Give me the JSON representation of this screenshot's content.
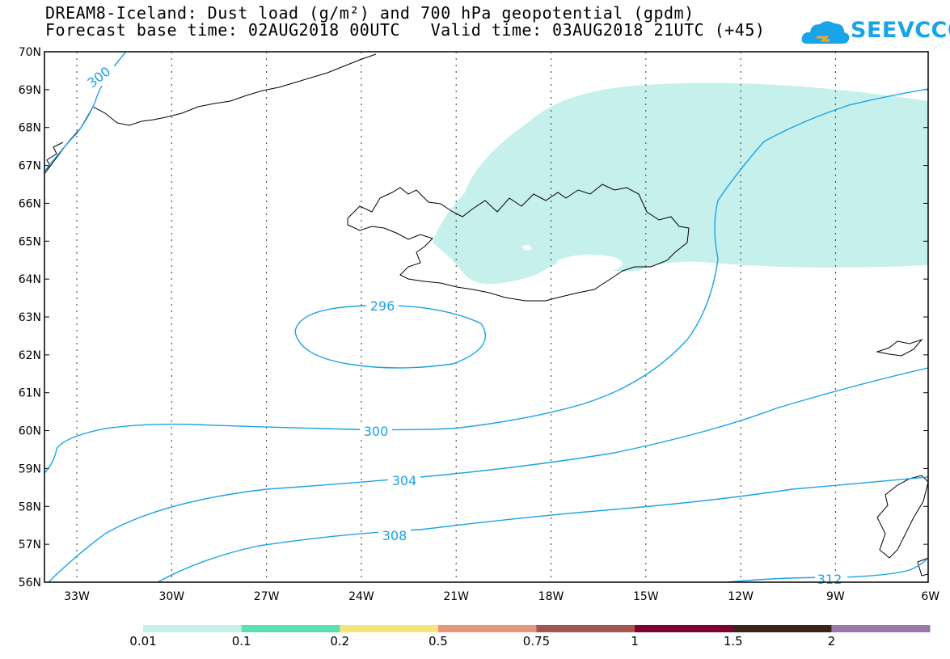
{
  "header": {
    "title": "DREAM8-Iceland: Dust load (g/m²) and 700 hPa geopotential (gpdm)",
    "base_time_label": "Forecast base time: 02AUG2018 00UTC",
    "valid_time_label": "Valid time: 03AUG2018 21UTC (+45)"
  },
  "logo": {
    "text": "SEEVCCC",
    "icon": "cloud-icon",
    "color": "#1aa3e8"
  },
  "map": {
    "lat_labels": [
      "70N",
      "69N",
      "68N",
      "67N",
      "66N",
      "65N",
      "64N",
      "63N",
      "62N",
      "61N",
      "60N",
      "59N",
      "58N",
      "57N",
      "56N"
    ],
    "lon_labels": [
      "33W",
      "30W",
      "27W",
      "24W",
      "21W",
      "18W",
      "15W",
      "12W",
      "9W",
      "6W"
    ],
    "contour_color": "#1aa3e8",
    "dust_color": "#c6f0ec",
    "contour_labels": [
      "300",
      "296",
      "300",
      "304",
      "308",
      "312"
    ]
  },
  "colorbar": {
    "colors": [
      "#c6f0ec",
      "#58e0b0",
      "#f6e67a",
      "#e89878",
      "#a45550",
      "#800030",
      "#3a2418",
      "#9878a8"
    ],
    "labels": [
      "0.01",
      "0.1",
      "0.2",
      "0.5",
      "0.75",
      "1",
      "1.5",
      "2"
    ]
  }
}
